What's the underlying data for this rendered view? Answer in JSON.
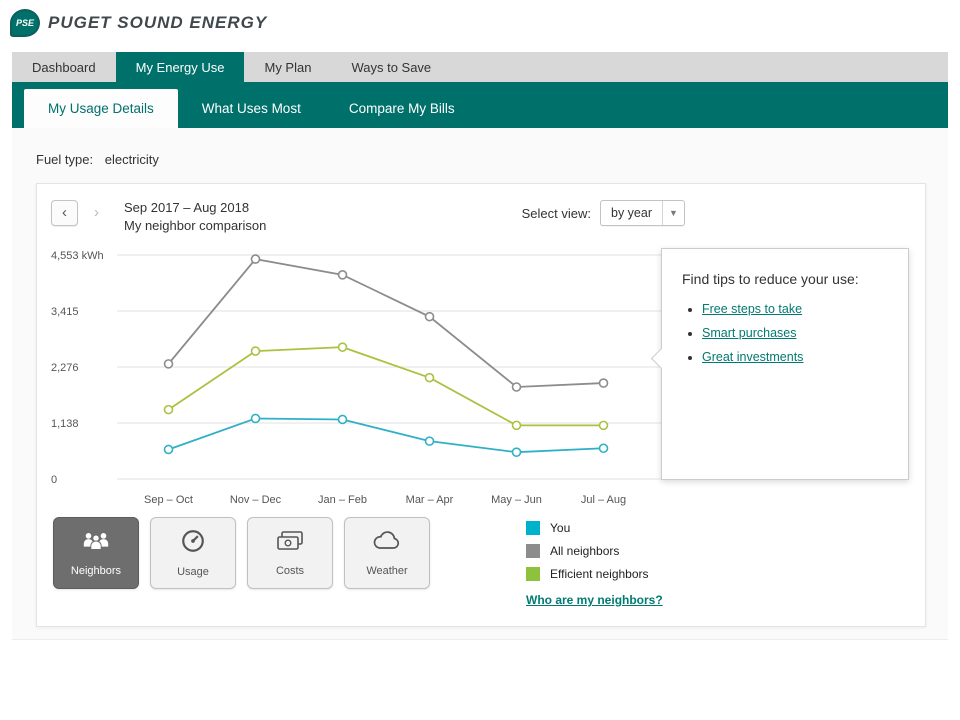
{
  "brand": {
    "logo_text": "PSE",
    "name": "PUGET SOUND ENERGY"
  },
  "nav": {
    "items": [
      {
        "label": "Dashboard",
        "active": false
      },
      {
        "label": "My Energy Use",
        "active": true
      },
      {
        "label": "My Plan",
        "active": false
      },
      {
        "label": "Ways to Save",
        "active": false
      }
    ]
  },
  "subnav": {
    "items": [
      {
        "label": "My Usage Details",
        "active": true
      },
      {
        "label": "What Uses Most",
        "active": false
      },
      {
        "label": "Compare My Bills",
        "active": false
      }
    ]
  },
  "fuel": {
    "label": "Fuel type:",
    "value": "electricity"
  },
  "chart_header": {
    "prev": "‹",
    "next": "›",
    "date_range": "Sep 2017 – Aug 2018",
    "subtitle": "My neighbor comparison",
    "select_label": "Select view:",
    "select_value": "by year",
    "select_arrow": "▼"
  },
  "chart_data": {
    "type": "line",
    "title": "My neighbor comparison",
    "categories": [
      "Sep – Oct",
      "Nov – Dec",
      "Jan – Feb",
      "Mar – Apr",
      "May – Jun",
      "Jul – Aug"
    ],
    "series": [
      {
        "name": "All neighbors",
        "color": "#8c8c8c",
        "values": [
          2340,
          4470,
          4150,
          3300,
          1870,
          1950
        ]
      },
      {
        "name": "Efficient neighbors",
        "color": "#a9c23f",
        "values": [
          1410,
          2600,
          2680,
          2060,
          1090,
          1090
        ]
      },
      {
        "name": "You",
        "color": "#2fb0c7",
        "values": [
          600,
          1230,
          1210,
          770,
          545,
          625
        ]
      }
    ],
    "ylim": [
      0,
      4553
    ],
    "yticks": [
      {
        "value": 4553,
        "label": "4,553 kWh"
      },
      {
        "value": 3415,
        "label": "3,415"
      },
      {
        "value": 2276,
        "label": "2,276"
      },
      {
        "value": 1138,
        "label": "1,138"
      },
      {
        "value": 0,
        "label": "0"
      }
    ],
    "xlabel": "",
    "ylabel": "kWh",
    "grid": true,
    "legend_position": "bottom-right"
  },
  "tips": {
    "heading": "Find tips to reduce your use:",
    "links": [
      "Free steps to take",
      "Smart purchases",
      "Great investments"
    ]
  },
  "view_buttons": [
    {
      "label": "Neighbors",
      "icon": "neighbors-icon",
      "active": true
    },
    {
      "label": "Usage",
      "icon": "gauge-icon",
      "active": false
    },
    {
      "label": "Costs",
      "icon": "money-icon",
      "active": false
    },
    {
      "label": "Weather",
      "icon": "cloud-icon",
      "active": false
    }
  ],
  "legend": {
    "items": [
      {
        "label": "You",
        "color": "#00b1ce"
      },
      {
        "label": "All neighbors",
        "color": "#8c8c8c"
      },
      {
        "label": "Efficient neighbors",
        "color": "#8fc23c"
      }
    ],
    "link": "Who are my neighbors?"
  },
  "colors": {
    "brand_teal": "#00706b",
    "link_teal": "#007a72"
  }
}
